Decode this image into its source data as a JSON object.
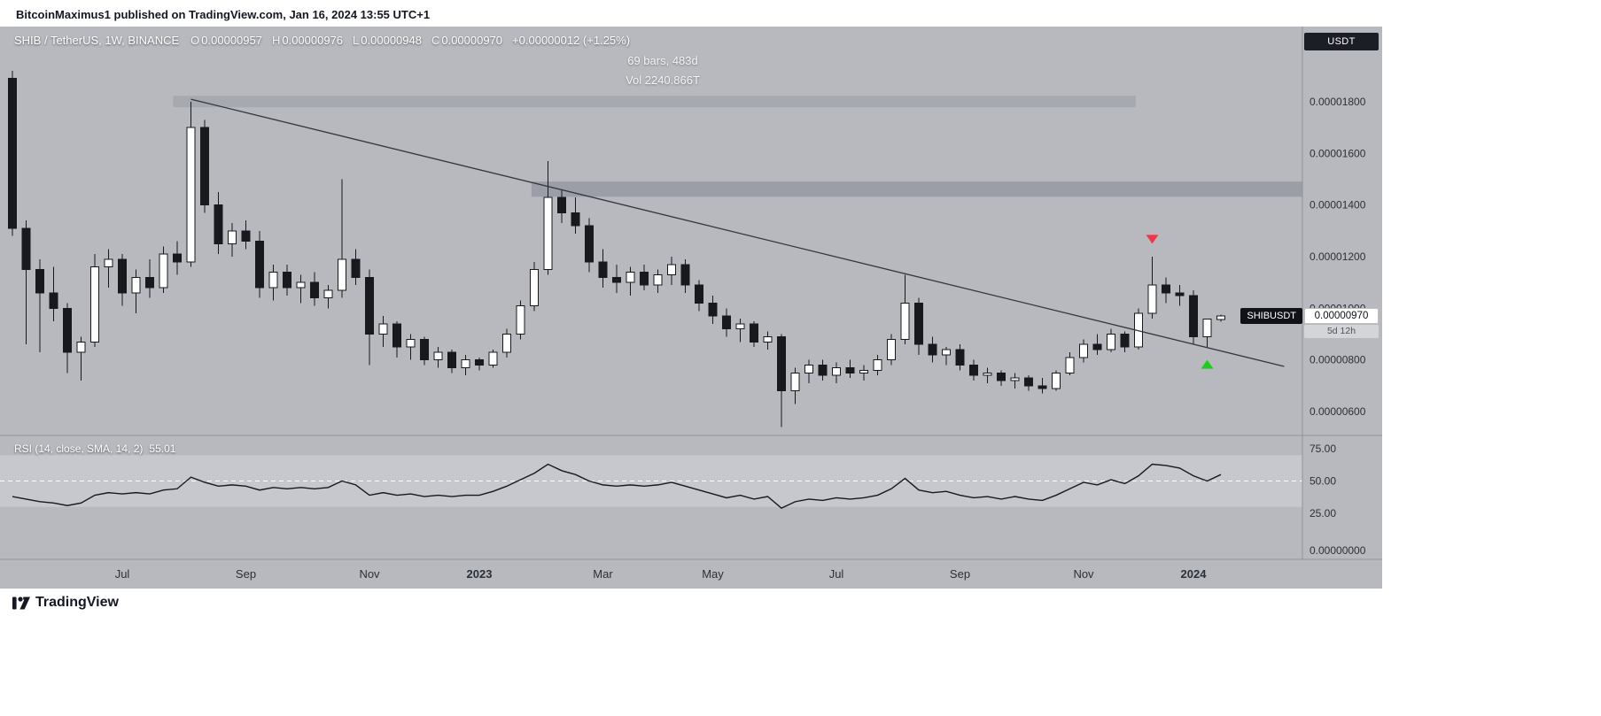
{
  "attribution": "BitcoinMaximus1 published on TradingView.com, Jan 16, 2024 13:55 UTC+1",
  "header": {
    "title": "SHIB / TetherUS, 1W, BINANCE",
    "fields": [
      {
        "k": "O",
        "v": "0.00000957"
      },
      {
        "k": "H",
        "v": "0.00000976"
      },
      {
        "k": "L",
        "v": "0.00000948"
      },
      {
        "k": "C",
        "v": "0.00000970"
      }
    ],
    "change": "+0.00000012 (+1.25%)"
  },
  "annotations": {
    "bars_info": "69 bars, 483d",
    "vol_info": "Vol 2240.866T"
  },
  "currency_button": "USDT",
  "price_label": {
    "tag": "SHIBUSDT",
    "price": "0.00000970",
    "countdown": "5d 12h"
  },
  "rsi_pane": {
    "title": "RSI (14, close, SMA, 14, 2)",
    "value": "55.01"
  },
  "footer": {
    "brand": "TradingView"
  },
  "chart_data": {
    "type": "candlestick",
    "symbol": "SHIB/USDT",
    "exchange": "BINANCE",
    "timeframe": "1W",
    "price_unit": "USDT",
    "price_scale_factor": 1e-08,
    "x_range": "weekly bars, May 2022 - Jan 2024",
    "ylim": [
      500,
      1950
    ],
    "grid": false,
    "colors": {
      "background": "#b7b9be",
      "candle_up": "#ffffff",
      "candle_down": "#17191d",
      "trendline": "#33363c",
      "rsi_line": "#17191d",
      "rsi_band": "#c6c8cd",
      "rsi_mid": "#ffffff",
      "separator": "#90939a",
      "axis_text": "#2b2f38",
      "marker_down": "#f23645",
      "marker_up": "#1ecb1e"
    },
    "candles": [
      [
        1890,
        1920,
        1280,
        1310
      ],
      [
        1310,
        1340,
        860,
        1150
      ],
      [
        1150,
        1190,
        830,
        1060
      ],
      [
        1060,
        1160,
        950,
        1000
      ],
      [
        1000,
        1020,
        750,
        830
      ],
      [
        830,
        890,
        720,
        870
      ],
      [
        870,
        1210,
        850,
        1160
      ],
      [
        1160,
        1230,
        1080,
        1190
      ],
      [
        1190,
        1210,
        1010,
        1060
      ],
      [
        1060,
        1150,
        980,
        1120
      ],
      [
        1120,
        1190,
        1040,
        1080
      ],
      [
        1080,
        1240,
        1060,
        1210
      ],
      [
        1210,
        1260,
        1130,
        1180
      ],
      [
        1180,
        1800,
        1160,
        1700
      ],
      [
        1700,
        1730,
        1370,
        1400
      ],
      [
        1400,
        1450,
        1210,
        1250
      ],
      [
        1250,
        1330,
        1200,
        1300
      ],
      [
        1300,
        1340,
        1230,
        1260
      ],
      [
        1260,
        1300,
        1040,
        1080
      ],
      [
        1080,
        1170,
        1030,
        1140
      ],
      [
        1140,
        1170,
        1050,
        1080
      ],
      [
        1080,
        1130,
        1020,
        1100
      ],
      [
        1100,
        1140,
        1010,
        1040
      ],
      [
        1040,
        1090,
        1000,
        1070
      ],
      [
        1070,
        1500,
        1040,
        1190
      ],
      [
        1190,
        1230,
        1090,
        1120
      ],
      [
        1120,
        1150,
        780,
        900
      ],
      [
        900,
        970,
        850,
        940
      ],
      [
        940,
        950,
        810,
        850
      ],
      [
        850,
        900,
        800,
        880
      ],
      [
        880,
        890,
        780,
        800
      ],
      [
        800,
        850,
        770,
        830
      ],
      [
        830,
        840,
        750,
        770
      ],
      [
        770,
        820,
        740,
        800
      ],
      [
        800,
        810,
        760,
        780
      ],
      [
        780,
        840,
        770,
        830
      ],
      [
        830,
        920,
        810,
        900
      ],
      [
        900,
        1030,
        880,
        1010
      ],
      [
        1010,
        1180,
        990,
        1150
      ],
      [
        1150,
        1570,
        1130,
        1430
      ],
      [
        1430,
        1460,
        1330,
        1370
      ],
      [
        1370,
        1430,
        1290,
        1320
      ],
      [
        1320,
        1350,
        1140,
        1180
      ],
      [
        1180,
        1230,
        1080,
        1120
      ],
      [
        1120,
        1170,
        1060,
        1100
      ],
      [
        1100,
        1160,
        1050,
        1140
      ],
      [
        1140,
        1170,
        1070,
        1090
      ],
      [
        1090,
        1150,
        1060,
        1130
      ],
      [
        1130,
        1200,
        1090,
        1170
      ],
      [
        1170,
        1190,
        1060,
        1090
      ],
      [
        1090,
        1110,
        990,
        1020
      ],
      [
        1020,
        1050,
        940,
        970
      ],
      [
        970,
        1000,
        890,
        920
      ],
      [
        920,
        960,
        870,
        940
      ],
      [
        940,
        950,
        850,
        870
      ],
      [
        870,
        910,
        840,
        890
      ],
      [
        890,
        900,
        540,
        680
      ],
      [
        680,
        770,
        630,
        750
      ],
      [
        750,
        800,
        710,
        780
      ],
      [
        780,
        800,
        720,
        740
      ],
      [
        740,
        790,
        710,
        770
      ],
      [
        770,
        800,
        730,
        750
      ],
      [
        750,
        780,
        720,
        760
      ],
      [
        760,
        820,
        740,
        800
      ],
      [
        800,
        900,
        780,
        880
      ],
      [
        880,
        1130,
        860,
        1020
      ],
      [
        1020,
        1040,
        820,
        860
      ],
      [
        860,
        890,
        790,
        820
      ],
      [
        820,
        850,
        780,
        840
      ],
      [
        840,
        860,
        760,
        780
      ],
      [
        780,
        800,
        720,
        740
      ],
      [
        740,
        770,
        710,
        750
      ],
      [
        750,
        760,
        700,
        720
      ],
      [
        720,
        750,
        690,
        730
      ],
      [
        730,
        740,
        680,
        700
      ],
      [
        700,
        730,
        670,
        690
      ],
      [
        690,
        760,
        680,
        750
      ],
      [
        750,
        830,
        740,
        810
      ],
      [
        810,
        880,
        790,
        860
      ],
      [
        860,
        900,
        820,
        840
      ],
      [
        840,
        920,
        830,
        900
      ],
      [
        900,
        910,
        830,
        850
      ],
      [
        850,
        1000,
        840,
        980
      ],
      [
        980,
        1200,
        960,
        1090
      ],
      [
        1090,
        1120,
        1020,
        1060
      ],
      [
        1060,
        1090,
        1010,
        1050
      ],
      [
        1050,
        1070,
        860,
        890
      ],
      [
        890,
        960,
        850,
        958
      ],
      [
        957,
        976,
        948,
        970
      ]
    ],
    "rsi": [
      38,
      36,
      34,
      33,
      31,
      33,
      39,
      41,
      40,
      41,
      40,
      43,
      44,
      53,
      49,
      46,
      47,
      46,
      43,
      45,
      44,
      45,
      44,
      45,
      50,
      47,
      39,
      41,
      39,
      40,
      38,
      39,
      38,
      39,
      39,
      42,
      46,
      51,
      56,
      63,
      58,
      55,
      50,
      47,
      46,
      47,
      46,
      47,
      49,
      46,
      43,
      40,
      37,
      39,
      36,
      38,
      29,
      34,
      36,
      35,
      37,
      36,
      37,
      39,
      44,
      52,
      43,
      41,
      42,
      39,
      37,
      38,
      36,
      38,
      36,
      35,
      39,
      44,
      49,
      47,
      51,
      48,
      54,
      63,
      62,
      60,
      54,
      50,
      55.01
    ],
    "rsi_levels": {
      "upper": 70,
      "middle": 50,
      "lower": 30
    },
    "price_scale": [
      {
        "t": "0.00001800",
        "p": 1800
      },
      {
        "t": "0.00001600",
        "p": 1600
      },
      {
        "t": "0.00001400",
        "p": 1400
      },
      {
        "t": "0.00001200",
        "p": 1200
      },
      {
        "t": "0.00001000",
        "p": 1000
      },
      {
        "t": "0.00000800",
        "p": 800
      },
      {
        "t": "0.00000600",
        "p": 600
      }
    ],
    "rsi_scale": [
      {
        "t": "75.00",
        "v": 75
      },
      {
        "t": "50.00",
        "v": 50
      },
      {
        "t": "25.00",
        "v": 25
      }
    ],
    "zero_label": "0.00000000",
    "months": [
      {
        "i": 8,
        "t": "Jul",
        "b": 0
      },
      {
        "i": 17,
        "t": "Sep",
        "b": 0
      },
      {
        "i": 26,
        "t": "Nov",
        "b": 0
      },
      {
        "i": 34,
        "t": "2023",
        "b": 1
      },
      {
        "i": 43,
        "t": "Mar",
        "b": 0
      },
      {
        "i": 51,
        "t": "May",
        "b": 0
      },
      {
        "i": 60,
        "t": "Jul",
        "b": 0
      },
      {
        "i": 69,
        "t": "Sep",
        "b": 0
      },
      {
        "i": 78,
        "t": "Nov",
        "b": 0
      },
      {
        "i": 86,
        "t": "2024",
        "b": 1
      }
    ],
    "zones": [
      {
        "name": "upper-resistance-zone",
        "i1": 11.7,
        "i2": 81.8,
        "p_top": 1823,
        "p_bottom": 1779,
        "color": "#a6a9b0"
      },
      {
        "name": "mid-resistance-zone",
        "i1": 37.8,
        "i2": "end",
        "p_top": 1491,
        "p_bottom": 1432,
        "color": "#9b9ea6"
      }
    ],
    "trendline": {
      "i1": 13,
      "p1": 1810,
      "i2": 92.6,
      "p2": 775
    },
    "markers": [
      {
        "i": 83,
        "p": 1250,
        "dir": "down",
        "color": "#f23645",
        "meaning": "local-top-signal"
      },
      {
        "i": 87,
        "p": 800,
        "dir": "up",
        "color": "#1ecb1e",
        "meaning": "local-bottom-signal"
      }
    ]
  }
}
